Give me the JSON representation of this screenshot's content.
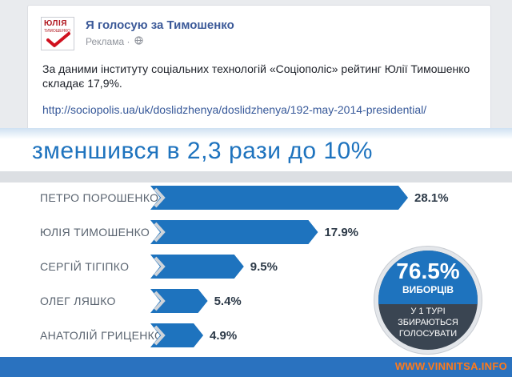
{
  "post": {
    "page_name": "Я голосую за Тимошенко",
    "sponsored_label": "Реклама",
    "dot": "·",
    "globe_icon": "globe-icon",
    "avatar_logo_text": "ЮЛІЯ",
    "avatar_logo_sub": "ТИМОШЕНКО",
    "body": "За даними інституту соціальних технологій «Соціополіс» рейтинг Юлії Тимошенко складає 17,9%.",
    "link": "http://sociopolis.ua/uk/doslidzhenya/doslidzhenya/192-may-2014-presidential/"
  },
  "infographic": {
    "headline": "зменшився в 2,3 рази до 10%",
    "stat_big": "76.5%",
    "stat_sub": "ВИБОРЦІВ",
    "stat_foot": [
      "У 1 ТУРІ",
      "ЗБИРАЮТЬСЯ",
      "ГОЛОСУВАТИ"
    ],
    "watermark": "WWW.VINNITSA.INFO",
    "accent_color": "#1e73be",
    "dark_color": "#3a4552"
  },
  "chart_data": {
    "type": "bar",
    "categories": [
      "ПЕТРО ПОРОШЕНКО",
      "ЮЛІЯ ТИМОШЕНКО",
      "СЕРГІЙ ТІГІПКО",
      "ОЛЕГ ЛЯШКО",
      "АНАТОЛІЙ ГРИЦЕНКО"
    ],
    "values": [
      28.1,
      17.9,
      9.5,
      5.4,
      4.9
    ],
    "value_labels": [
      "28.1%",
      "17.9%",
      "9.5%",
      "5.4%",
      "4.9%"
    ],
    "title": "зменшився в 2,3 рази до 10%",
    "xlabel": "",
    "ylabel": "",
    "orientation": "horizontal"
  }
}
